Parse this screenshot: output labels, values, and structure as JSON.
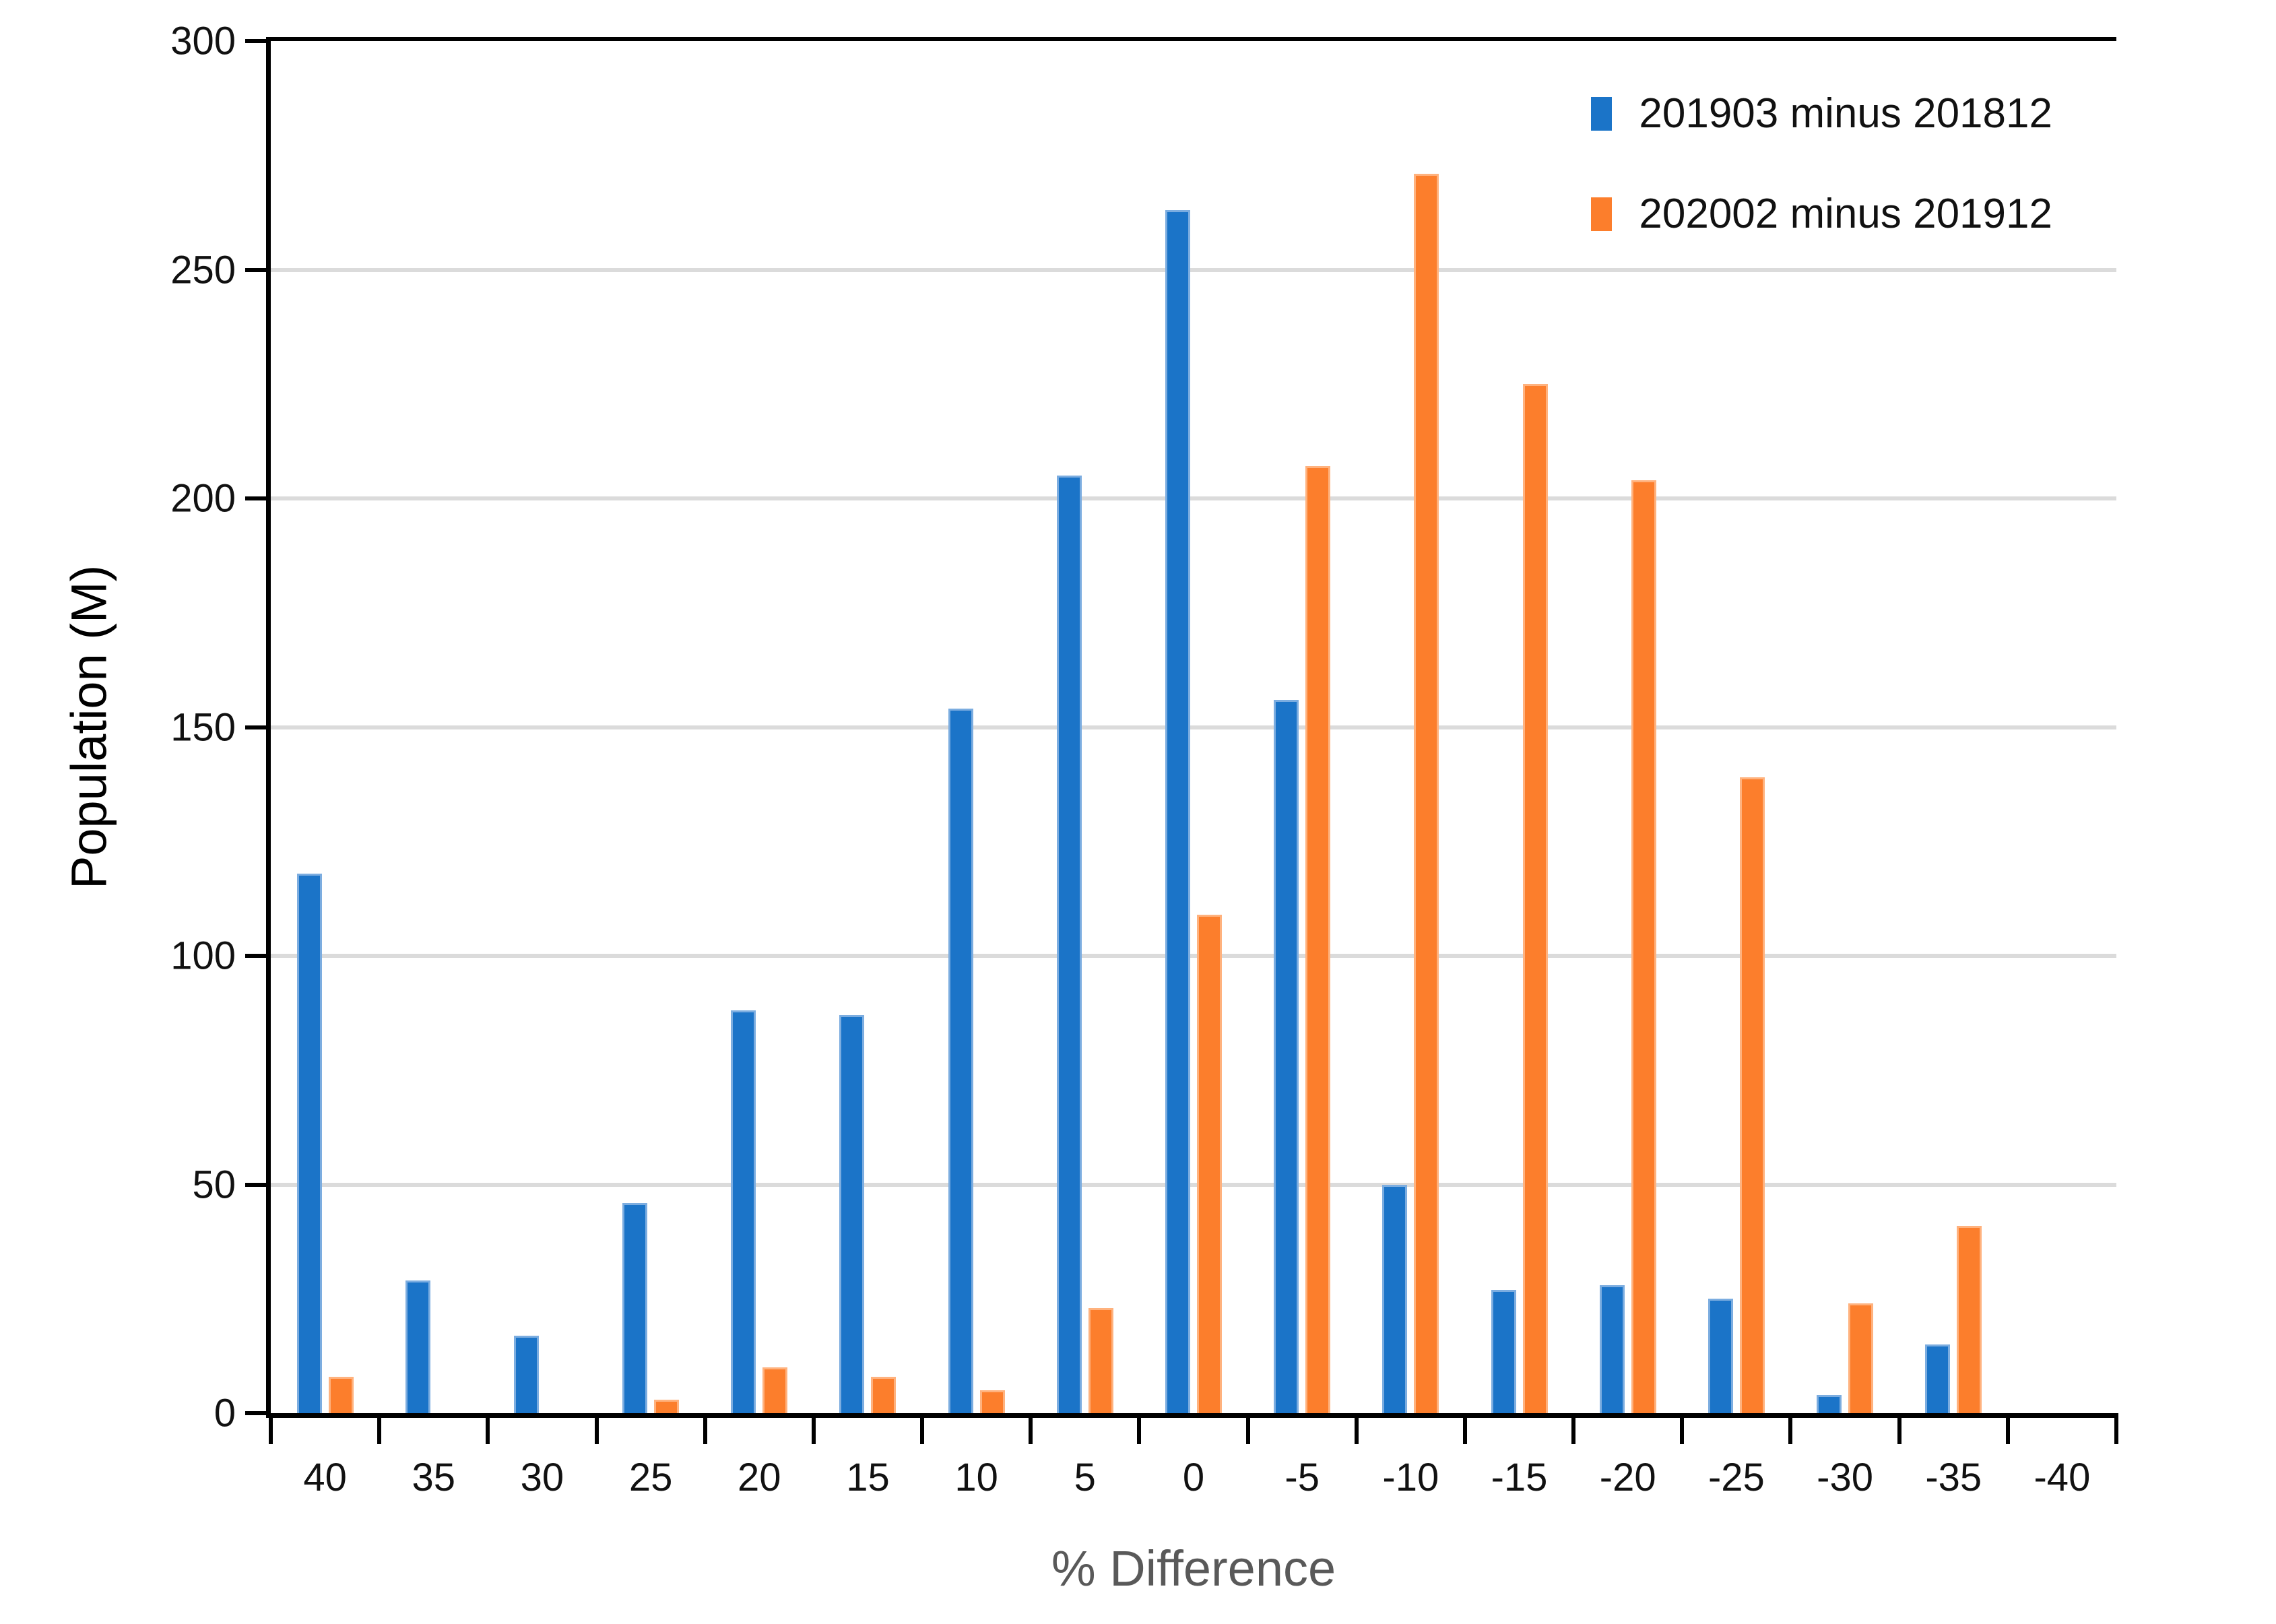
{
  "chart_data": {
    "type": "bar",
    "title": "",
    "xlabel": "% Difference",
    "ylabel": "Population (M)",
    "categories": [
      "40",
      "35",
      "30",
      "25",
      "20",
      "15",
      "10",
      "5",
      "0",
      "-5",
      "-10",
      "-15",
      "-20",
      "-25",
      "-30",
      "-35",
      "-40"
    ],
    "series": [
      {
        "name": "201903 minus 201812",
        "color": "#1b74c8",
        "edge_color": "#7cade0",
        "values": [
          118,
          29,
          17,
          46,
          88,
          87,
          154,
          205,
          263,
          156,
          50,
          27,
          28,
          25,
          4,
          15,
          0
        ]
      },
      {
        "name": "202002 minus 201912",
        "color": "#fc7e2c",
        "edge_color": "#ffb27e",
        "values": [
          8,
          0,
          0,
          3,
          10,
          8,
          5,
          23,
          109,
          207,
          271,
          225,
          204,
          139,
          24,
          41,
          0
        ]
      }
    ],
    "ylim": [
      0,
      300
    ],
    "yticks": [
      0,
      50,
      100,
      150,
      200,
      250,
      300
    ],
    "grid": "horizontal-major",
    "gridline_color": "#dbdbdb",
    "axis_color": "#000000",
    "tick_label_color": "#111111",
    "x_title_color": "#595959",
    "legend_position": "top-right-inside"
  }
}
